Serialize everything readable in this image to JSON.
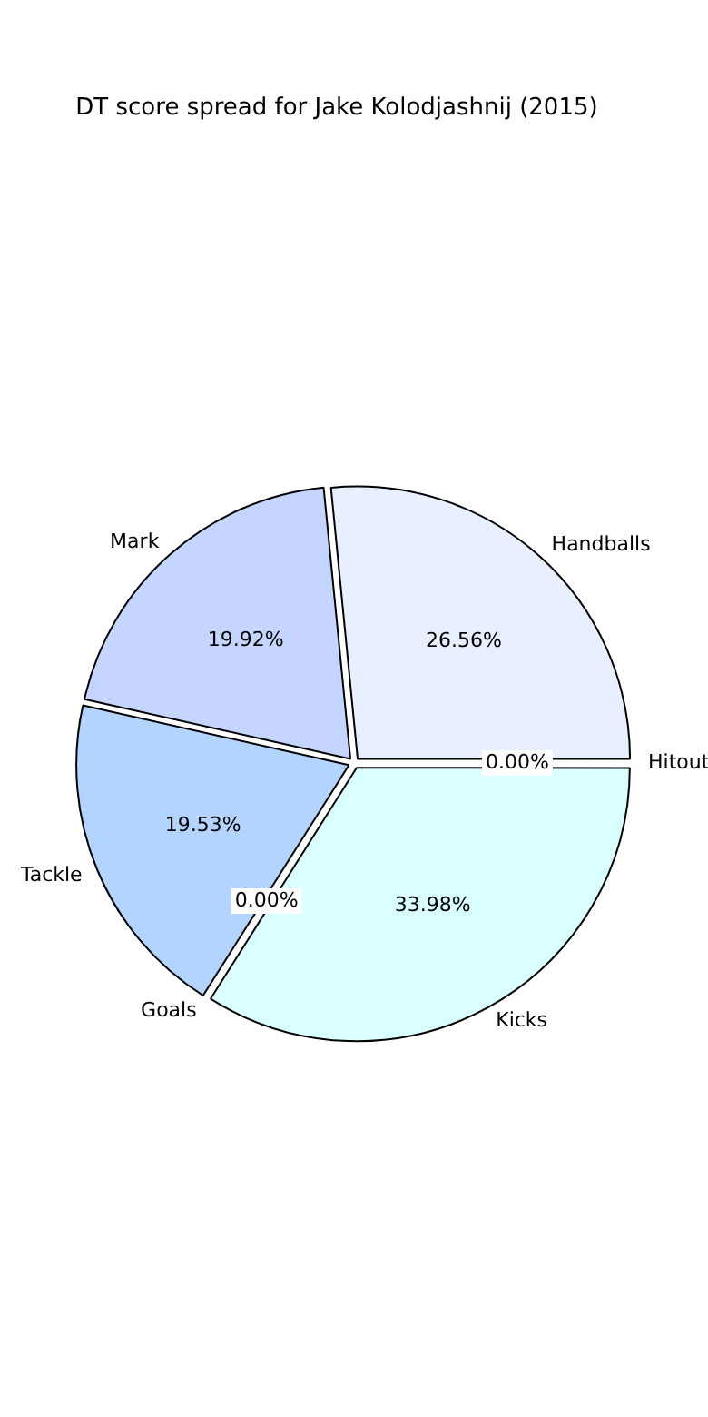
{
  "chart_data": {
    "type": "pie",
    "title": "DT score spread for Jake Kolodjashnij (2015)",
    "categories": [
      "Handballs",
      "Mark",
      "Tackle",
      "Goals",
      "Kicks",
      "Hitout"
    ],
    "values": [
      26.56,
      19.92,
      19.53,
      0,
      33.98,
      0
    ],
    "value_labels": [
      "26.56%",
      "19.92%",
      "19.53%",
      "0.00%",
      "33.98%",
      "0.00%"
    ],
    "colors": [
      "#e8efff",
      "#c4d6ff",
      "#b3d4ff",
      "#c8e6ff",
      "#d9ffff",
      "#e0e0ff"
    ],
    "legend": false
  }
}
